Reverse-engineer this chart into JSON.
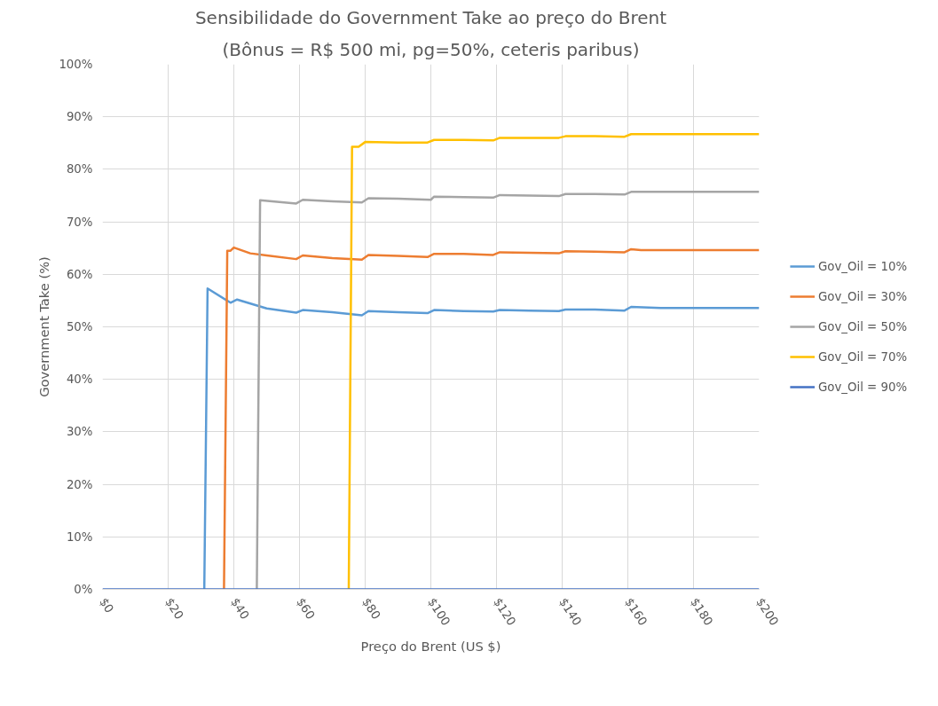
{
  "chart_data": {
    "type": "line",
    "title": "Sensibilidade do Government Take ao preço do Brent",
    "subtitle": "(Bônus = R$ 500 mi, pg=50%, ceteris paribus)",
    "xlabel": "Preço do Brent (US $)",
    "ylabel": "Government Take (%)",
    "xlim": [
      0,
      200
    ],
    "xticks": [
      {
        "value": 0,
        "label": "$0"
      },
      {
        "value": 20,
        "label": "$20"
      },
      {
        "value": 40,
        "label": "$40"
      },
      {
        "value": 60,
        "label": "$60"
      },
      {
        "value": 80,
        "label": "$80"
      },
      {
        "value": 100,
        "label": "$100"
      },
      {
        "value": 120,
        "label": "$120"
      },
      {
        "value": 140,
        "label": "$140"
      },
      {
        "value": 160,
        "label": "$160"
      },
      {
        "value": 180,
        "label": "$180"
      },
      {
        "value": 200,
        "label": "$200"
      }
    ],
    "ylim": [
      0,
      100
    ],
    "yticks": [
      {
        "value": 0,
        "label": "0%"
      },
      {
        "value": 10,
        "label": "10%"
      },
      {
        "value": 20,
        "label": "20%"
      },
      {
        "value": 30,
        "label": "30%"
      },
      {
        "value": 40,
        "label": "40%"
      },
      {
        "value": 50,
        "label": "50%"
      },
      {
        "value": 60,
        "label": "60%"
      },
      {
        "value": 70,
        "label": "70%"
      },
      {
        "value": 80,
        "label": "80%"
      },
      {
        "value": 90,
        "label": "90%"
      },
      {
        "value": 100,
        "label": "100%"
      }
    ],
    "grid": true,
    "legend": "right",
    "marker": "none",
    "line_style": "solid",
    "series": [
      {
        "name": "Gov_Oil = 10%",
        "color": "#5b9bd5",
        "x": [
          31,
          32,
          39,
          41,
          50,
          59,
          61,
          70,
          79,
          81,
          90,
          99,
          101,
          110,
          119,
          121,
          130,
          139,
          141,
          150,
          159,
          161,
          170,
          200
        ],
        "values": [
          0,
          57.3,
          54.6,
          55.2,
          53.5,
          52.7,
          53.2,
          52.8,
          52.2,
          53.0,
          52.8,
          52.6,
          53.2,
          53.0,
          52.9,
          53.2,
          53.1,
          53.0,
          53.3,
          53.3,
          53.1,
          53.8,
          53.6,
          53.6
        ]
      },
      {
        "name": "Gov_Oil = 30%",
        "color": "#ed7d31",
        "x": [
          37,
          38,
          39,
          40,
          45,
          50,
          59,
          61,
          70,
          79,
          81,
          90,
          99,
          101,
          110,
          119,
          121,
          130,
          139,
          141,
          150,
          159,
          161,
          164,
          200
        ],
        "values": [
          0,
          64.5,
          64.5,
          65.1,
          64.0,
          63.6,
          62.9,
          63.6,
          63.1,
          62.8,
          63.7,
          63.5,
          63.3,
          63.9,
          63.9,
          63.7,
          64.2,
          64.1,
          64.0,
          64.4,
          64.3,
          64.2,
          64.8,
          64.6,
          64.6
        ]
      },
      {
        "name": "Gov_Oil = 50%",
        "color": "#a5a5a5",
        "x": [
          47,
          48,
          59,
          61,
          70,
          79,
          81,
          90,
          100,
          101,
          110,
          119,
          121,
          130,
          139,
          141,
          150,
          159,
          161,
          200
        ],
        "values": [
          0,
          74.1,
          73.5,
          74.2,
          73.9,
          73.7,
          74.5,
          74.4,
          74.2,
          74.8,
          74.7,
          74.6,
          75.1,
          75.0,
          74.9,
          75.3,
          75.3,
          75.2,
          75.7,
          75.7
        ]
      },
      {
        "name": "Gov_Oil = 70%",
        "color": "#ffc000",
        "x": [
          75,
          76,
          78,
          80,
          90,
          99,
          101,
          110,
          119,
          121,
          130,
          139,
          141,
          150,
          159,
          161,
          200
        ],
        "values": [
          0,
          84.3,
          84.3,
          85.2,
          85.1,
          85.1,
          85.6,
          85.6,
          85.5,
          86.0,
          86.0,
          86.0,
          86.3,
          86.3,
          86.2,
          86.7,
          86.7
        ]
      },
      {
        "name": "Gov_Oil = 90%",
        "color": "#4472c4",
        "x": [
          0,
          200
        ],
        "values": [
          0,
          0
        ]
      }
    ]
  }
}
